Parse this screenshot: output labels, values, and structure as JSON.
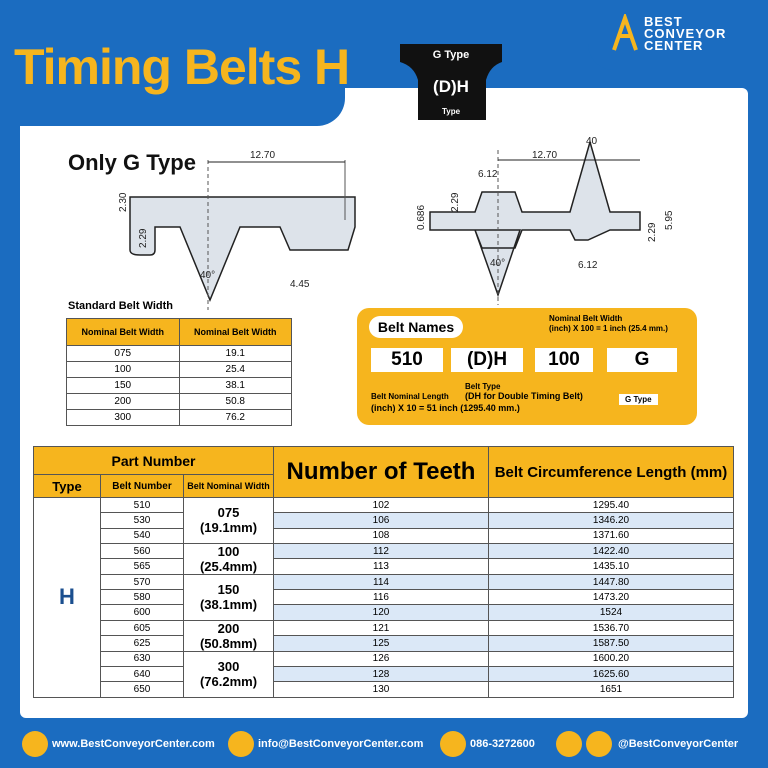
{
  "header": {
    "title": "Timing Belts H",
    "badge": {
      "top": "G Type",
      "middle": "(D)H",
      "bottom": "Type"
    },
    "logo": [
      "BEST",
      "CONVEYOR",
      "CENTER"
    ]
  },
  "diagram_left": {
    "label": "Only G Type",
    "pitch": "12.70",
    "height": "2.30",
    "tooth": "2.29",
    "angle": "40°",
    "land": "4.45"
  },
  "diagram_right": {
    "angle_top": "40",
    "pitch": "12.70",
    "tooth_width": "6.12",
    "gap": "0.686",
    "tooth_top": "2.29",
    "total": "5.95",
    "tooth_bottom": "2.29",
    "angle": "40°",
    "tooth_width_bottom": "6.12"
  },
  "standard_width": {
    "title": "Standard Belt Width",
    "headers": [
      "Nominal Belt Width",
      "Nominal Belt Width"
    ],
    "rows": [
      [
        "075",
        "19.1"
      ],
      [
        "100",
        "25.4"
      ],
      [
        "150",
        "38.1"
      ],
      [
        "200",
        "50.8"
      ],
      [
        "300",
        "76.2"
      ]
    ]
  },
  "belt_names": {
    "title": "Belt Names",
    "width_note": [
      "Nominal Belt Width",
      "(inch) X 100 = 1 inch (25.4 mm.)"
    ],
    "parts": [
      "510",
      "(D)H",
      "100",
      "G"
    ],
    "length_note": [
      "Belt Nominal Length",
      "(inch) X 10 = 51 inch (1295.40 mm.)"
    ],
    "type_note": [
      "Belt Type",
      "(DH for Double Timing Belt)"
    ],
    "g_note": "G Type"
  },
  "table": {
    "headers": {
      "part_number": "Part Number",
      "teeth": "Number of Teeth",
      "length": "Belt Circumference Length (mm)",
      "type": "Type",
      "belt_number": "Belt Number",
      "width": "Belt Nominal Width"
    },
    "type": "H",
    "widths": [
      [
        "075",
        "(19.1mm)"
      ],
      [
        "100",
        "(25.4mm)"
      ],
      [
        "150",
        "(38.1mm)"
      ],
      [
        "200",
        "(50.8mm)"
      ],
      [
        "300",
        "(76.2mm)"
      ]
    ],
    "rows": [
      [
        "510",
        102,
        "1295.40"
      ],
      [
        "530",
        106,
        "1346.20"
      ],
      [
        "540",
        108,
        "1371.60"
      ],
      [
        "560",
        112,
        "1422.40"
      ],
      [
        "565",
        113,
        "1435.10"
      ],
      [
        "570",
        114,
        "1447.80"
      ],
      [
        "580",
        116,
        "1473.20"
      ],
      [
        "600",
        120,
        "1524"
      ],
      [
        "605",
        121,
        "1536.70"
      ],
      [
        "625",
        125,
        "1587.50"
      ],
      [
        "630",
        126,
        "1600.20"
      ],
      [
        "640",
        128,
        "1625.60"
      ],
      [
        "650",
        130,
        "1651"
      ]
    ]
  },
  "footer": {
    "web": "www.BestConveyorCenter.com",
    "email": "info@BestConveyorCenter.com",
    "phone": "086-3272600",
    "social": "@BestConveyorCenter"
  }
}
